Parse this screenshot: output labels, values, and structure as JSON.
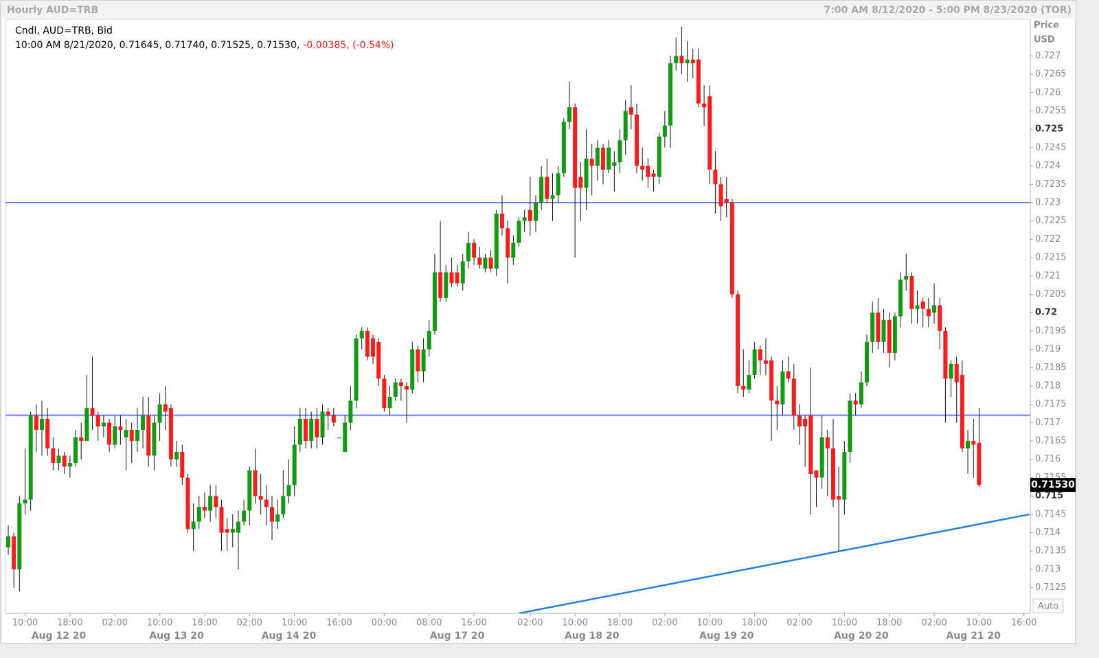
{
  "chart_data": {
    "type": "candlestick",
    "title": "Hourly AUD=TRB",
    "date_range": "7:00 AM 8/12/2020 - 5:00 PM 8/23/2020 (TOR)",
    "legend_title": "Cndl, AUD=TRB, Bid",
    "legend_values": "10:00 AM 8/21/2020, 0.71645, 0.71740, 0.71525, 0.71530,",
    "legend_change": "-0.00385, (-0.54%)",
    "y_axis_title": "Price",
    "y_axis_unit": "USD",
    "scale_mode": "Auto",
    "up_color": "#129a12",
    "down_color": "#ff1c1c",
    "change_color": "#e8201e",
    "ylim": [
      0.7118,
      0.728
    ],
    "yticks": [
      0.7125,
      0.713,
      0.7135,
      0.714,
      0.7145,
      0.715,
      0.7155,
      0.716,
      0.7165,
      0.717,
      0.7175,
      0.718,
      0.7185,
      0.719,
      0.7195,
      0.72,
      0.7205,
      0.721,
      0.7215,
      0.722,
      0.7225,
      0.723,
      0.7235,
      0.724,
      0.7245,
      0.725,
      0.7255,
      0.726,
      0.7265,
      0.727
    ],
    "last_price": {
      "value": 0.7153,
      "label": "0.71530"
    },
    "hlines": {
      "color": "#6d7ff0",
      "values": [
        0.723,
        0.7172
      ]
    },
    "trendline": {
      "color": "#1f7fe6",
      "x": [
        91,
        182
      ],
      "y": [
        0.7118,
        0.7145
      ]
    },
    "categories": [
      null,
      null,
      null,
      "10:00",
      null,
      null,
      null,
      null,
      null,
      null,
      null,
      "18:00",
      null,
      null,
      null,
      null,
      null,
      null,
      null,
      "02:00",
      null,
      null,
      null,
      null,
      null,
      null,
      null,
      "10:00",
      null,
      null,
      null,
      null,
      null,
      null,
      null,
      "18:00",
      null,
      null,
      null,
      null,
      null,
      null,
      null,
      "02:00",
      null,
      null,
      null,
      null,
      null,
      null,
      null,
      "10:00",
      null,
      null,
      null,
      null,
      null,
      null,
      null,
      "16:00",
      null,
      null,
      null,
      null,
      null,
      null,
      null,
      "00:00",
      null,
      null,
      null,
      null,
      null,
      null,
      null,
      "08:00",
      null,
      null,
      null,
      null,
      null,
      null,
      null,
      "16:00",
      null,
      null,
      null,
      null,
      null,
      null,
      null,
      null,
      null,
      "02:00",
      null,
      null,
      null,
      null,
      null,
      null,
      null,
      "10:00",
      null,
      null,
      null,
      null,
      null,
      null,
      null,
      "18:00",
      null,
      null,
      null,
      null,
      null,
      null,
      null,
      "02:00",
      null,
      null,
      null,
      null,
      null,
      null,
      null,
      "10:00",
      null,
      null,
      null,
      null,
      null,
      null,
      null,
      "18:00",
      null,
      null,
      null,
      null,
      null,
      null,
      null,
      "02:00",
      null,
      null,
      null,
      null,
      null,
      null,
      null,
      "10:00",
      null,
      null,
      null,
      null,
      null,
      null,
      null,
      "18:00",
      null,
      null,
      null,
      null,
      null,
      null,
      null,
      "02:00",
      null,
      null,
      null,
      null,
      null,
      null,
      null,
      "10:00",
      null,
      null,
      null,
      null,
      null,
      null,
      null,
      "16:00",
      null
    ],
    "date_labels": [
      null,
      null,
      null,
      null,
      null,
      null,
      null,
      null,
      null,
      "Aug 12 20",
      null,
      null,
      null,
      null,
      null,
      null,
      null,
      null,
      null,
      null,
      null,
      null,
      null,
      null,
      null,
      null,
      null,
      null,
      null,
      null,
      "Aug 13 20",
      null,
      null,
      null,
      null,
      null,
      null,
      null,
      null,
      null,
      null,
      null,
      null,
      null,
      null,
      null,
      null,
      null,
      null,
      null,
      "Aug 14 20",
      null,
      null,
      null,
      null,
      null,
      null,
      null,
      null,
      null,
      null,
      null,
      null,
      null,
      null,
      null,
      null,
      null,
      null,
      null,
      null,
      null,
      null,
      null,
      null,
      null,
      null,
      null,
      null,
      null,
      "Aug 17 20",
      null,
      null,
      null,
      null,
      null,
      null,
      null,
      null,
      null,
      null,
      null,
      null,
      null,
      null,
      null,
      null,
      null,
      null,
      null,
      null,
      null,
      null,
      null,
      "Aug 18 20",
      null,
      null,
      null,
      null,
      null,
      null,
      null,
      null,
      null,
      null,
      null,
      null,
      null,
      null,
      null,
      null,
      null,
      null,
      null,
      null,
      null,
      null,
      null,
      "Aug 19 20",
      null,
      null,
      null,
      null,
      null,
      null,
      null,
      null,
      null,
      null,
      null,
      null,
      null,
      null,
      null,
      null,
      null,
      null,
      null,
      null,
      null,
      null,
      null,
      "Aug 20 20",
      null,
      null,
      null,
      null,
      null,
      null,
      null,
      null,
      null,
      null,
      null,
      null,
      null,
      null,
      null,
      null,
      null,
      null,
      null,
      "Aug 21 20",
      null,
      null,
      null,
      null,
      null,
      null,
      null,
      null,
      null,
      null
    ],
    "open": [
      0.7136,
      0.7139,
      0.713,
      0.7148,
      0.7149,
      0.7172,
      0.7168,
      0.7171,
      0.7163,
      0.7159,
      0.7161,
      0.7158,
      0.7159,
      0.7166,
      0.7165,
      0.7174,
      0.7172,
      0.7169,
      0.717,
      0.7164,
      0.7169,
      0.7166,
      0.7168,
      0.7165,
      0.7168,
      0.7172,
      0.7161,
      0.717,
      0.7175,
      0.7174,
      0.716,
      0.7162,
      0.7155,
      0.7141,
      0.7143,
      0.7147,
      0.7146,
      0.715,
      0.7147,
      0.7141,
      0.714,
      0.714,
      0.7143,
      0.7146,
      0.7157,
      0.715,
      0.7149,
      0.7147,
      0.7143,
      0.7145,
      0.715,
      0.7153,
      0.7164,
      0.7171,
      0.7165,
      0.7171,
      0.7166,
      0.7173,
      0.7172,
      0.7166,
      0.7162,
      0.717,
      0.7176,
      0.7193,
      0.7195,
      0.7193,
      0.7192,
      0.7182,
      0.7174,
      0.7177,
      0.7181,
      0.718,
      0.7179,
      0.719,
      0.7184,
      0.719,
      0.7195,
      0.7211,
      0.7204,
      0.7211,
      0.7211,
      0.7208,
      0.7214,
      0.7219,
      0.7215,
      0.7212,
      0.7215,
      0.7212,
      0.7227,
      0.7223,
      0.7215,
      0.7219,
      0.7225,
      0.7228,
      0.7225,
      0.723,
      0.7237,
      0.7231,
      0.7232,
      0.7238,
      0.7252,
      0.7256,
      0.7237,
      0.7234,
      0.7242,
      0.724,
      0.7245,
      0.7239,
      0.724,
      0.7241,
      0.7247,
      0.7256,
      0.7254,
      0.724,
      0.724,
      0.7238,
      0.7237,
      0.7248,
      0.7251,
      0.7268,
      0.727,
      0.7268,
      0.7269,
      0.7269,
      0.7257,
      0.7259,
      0.7239,
      0.7235,
      0.7231,
      0.723,
      0.7205,
      0.718,
      0.7179,
      0.7183,
      0.719,
      0.7187,
      0.7187,
      0.7176,
      0.7175,
      0.7184,
      0.7182,
      0.7172,
      0.7171,
      0.7172,
      0.7157,
      0.7155,
      0.7166,
      0.7163,
      0.715,
      0.7149,
      0.7162,
      0.7176,
      0.7175,
      0.7181,
      0.7192,
      0.72,
      0.7192,
      0.7198,
      0.7189,
      0.7199,
      0.7209,
      0.721,
      0.7201,
      0.7203,
      0.7201,
      0.72,
      0.7202,
      0.7195,
      0.7182,
      0.7186,
      0.7183,
      0.7163,
      0.7165,
      0.71645,
      null,
      null,
      null,
      null,
      null,
      null,
      null,
      null,
      null
    ],
    "high": [
      0.7142,
      0.714,
      0.715,
      0.7163,
      0.7173,
      0.7175,
      0.7176,
      0.7174,
      0.7166,
      0.7163,
      0.7162,
      0.7161,
      0.7168,
      0.717,
      0.7183,
      0.7188,
      0.7173,
      0.7172,
      0.7171,
      0.7172,
      0.7172,
      0.7171,
      0.717,
      0.7174,
      0.7177,
      0.7177,
      0.7172,
      0.7178,
      0.718,
      0.7175,
      0.7165,
      0.7164,
      0.7156,
      0.7148,
      0.715,
      0.7151,
      0.7153,
      0.7153,
      0.7149,
      0.7144,
      0.7145,
      0.7146,
      0.7149,
      0.7158,
      0.7163,
      0.7156,
      0.7153,
      0.715,
      0.7149,
      0.7157,
      0.716,
      0.7169,
      0.7174,
      0.7174,
      0.7173,
      0.7174,
      0.7175,
      0.7174,
      0.7174,
      0.7166,
      0.7172,
      0.718,
      0.7194,
      0.7196,
      0.7196,
      0.7194,
      0.7193,
      0.7183,
      0.718,
      0.7182,
      0.7182,
      0.7181,
      0.7192,
      0.7191,
      0.7193,
      0.7198,
      0.7216,
      0.7225,
      0.7213,
      0.7215,
      0.7213,
      0.7216,
      0.7222,
      0.722,
      0.7218,
      0.7216,
      0.7217,
      0.7228,
      0.7232,
      0.7225,
      0.7221,
      0.7226,
      0.7228,
      0.7237,
      0.7232,
      0.724,
      0.7242,
      0.7238,
      0.724,
      0.7253,
      0.7263,
      0.7257,
      0.7241,
      0.725,
      0.7246,
      0.7247,
      0.7246,
      0.7247,
      0.7244,
      0.725,
      0.7258,
      0.7262,
      0.7257,
      0.7245,
      0.7242,
      0.7239,
      0.7249,
      0.7255,
      0.727,
      0.7275,
      0.7278,
      0.7274,
      0.7272,
      0.7272,
      0.7262,
      0.7262,
      0.7244,
      0.7237,
      0.7237,
      0.7231,
      0.7206,
      0.719,
      0.7187,
      0.7192,
      0.7191,
      0.7193,
      0.7188,
      0.718,
      0.7187,
      0.7188,
      0.7186,
      0.7175,
      0.7172,
      0.7185,
      0.7157,
      0.7172,
      0.7168,
      0.7171,
      0.7158,
      0.7165,
      0.7178,
      0.7178,
      0.7184,
      0.7194,
      0.7203,
      0.7204,
      0.7201,
      0.72,
      0.72,
      0.7211,
      0.7216,
      0.7211,
      0.7206,
      0.7204,
      0.7204,
      0.7208,
      0.7204,
      0.7196,
      0.7187,
      0.7188,
      0.7187,
      0.7168,
      0.7171,
      0.7174,
      null,
      null,
      null,
      null,
      null,
      null,
      null,
      null,
      null
    ],
    "low": [
      0.7134,
      0.7125,
      0.7124,
      0.7145,
      0.7146,
      0.7162,
      0.7161,
      0.7161,
      0.7157,
      0.7157,
      0.7156,
      0.7155,
      0.7158,
      0.716,
      0.7165,
      0.7168,
      0.7165,
      0.7166,
      0.7162,
      0.7163,
      0.7164,
      0.7157,
      0.7159,
      0.7162,
      0.7163,
      0.7158,
      0.7157,
      0.7165,
      0.7168,
      0.7158,
      0.7158,
      0.7153,
      0.714,
      0.7135,
      0.7141,
      0.7144,
      0.7143,
      0.7144,
      0.7135,
      0.7135,
      0.7136,
      0.713,
      0.7142,
      0.7142,
      0.7148,
      0.7145,
      0.7142,
      0.7138,
      0.7141,
      0.7144,
      0.7148,
      0.715,
      0.7162,
      0.7163,
      0.7163,
      0.7163,
      0.7164,
      0.7168,
      0.7169,
      0.7166,
      0.7162,
      0.7168,
      0.7174,
      0.719,
      0.7187,
      0.7186,
      0.718,
      0.7173,
      0.7172,
      0.7176,
      0.7176,
      0.717,
      0.7178,
      0.7181,
      0.7181,
      0.7188,
      0.7194,
      0.7203,
      0.7203,
      0.7207,
      0.7207,
      0.7206,
      0.7212,
      0.7213,
      0.7212,
      0.7211,
      0.7211,
      0.721,
      0.7221,
      0.7208,
      0.7213,
      0.7218,
      0.7222,
      0.7221,
      0.7222,
      0.7228,
      0.723,
      0.7225,
      0.723,
      0.7237,
      0.725,
      0.7215,
      0.7225,
      0.7228,
      0.7232,
      0.7236,
      0.7235,
      0.7238,
      0.7233,
      0.7238,
      0.7243,
      0.725,
      0.7238,
      0.7236,
      0.7234,
      0.7233,
      0.7235,
      0.7245,
      0.7245,
      0.7266,
      0.7265,
      0.7263,
      0.7264,
      0.7256,
      0.7251,
      0.7235,
      0.7227,
      0.7225,
      0.7226,
      0.7204,
      0.7178,
      0.7177,
      0.7178,
      0.7182,
      0.7183,
      0.7183,
      0.7165,
      0.7168,
      0.7172,
      0.7181,
      0.7168,
      0.7164,
      0.7158,
      0.7145,
      0.7147,
      0.7152,
      0.715,
      0.7147,
      0.7135,
      0.7145,
      0.7159,
      0.7172,
      0.7174,
      0.718,
      0.7189,
      0.719,
      0.7189,
      0.7185,
      0.7187,
      0.7196,
      0.7206,
      0.7197,
      0.7197,
      0.7196,
      0.7196,
      0.7197,
      0.719,
      0.717,
      0.7177,
      0.717,
      0.7162,
      0.7156,
      0.7155,
      0.71525,
      null,
      null,
      null,
      null,
      null,
      null,
      null,
      null,
      null
    ],
    "close": [
      0.7139,
      0.713,
      0.7148,
      0.7149,
      0.7172,
      0.7168,
      0.7171,
      0.7163,
      0.7159,
      0.7161,
      0.7158,
      0.7159,
      0.7166,
      0.7165,
      0.7174,
      0.7172,
      0.7169,
      0.717,
      0.7164,
      0.7169,
      0.7168,
      0.7168,
      0.7165,
      0.7168,
      0.7172,
      0.7161,
      0.717,
      0.7175,
      0.7173,
      0.716,
      0.7162,
      0.7155,
      0.7141,
      0.7143,
      0.7147,
      0.7146,
      0.715,
      0.7147,
      0.714,
      0.714,
      0.7141,
      0.7143,
      0.7146,
      0.7157,
      0.715,
      0.7149,
      0.7147,
      0.7143,
      0.7145,
      0.715,
      0.7153,
      0.7164,
      0.7171,
      0.7165,
      0.7171,
      0.7166,
      0.7173,
      0.7172,
      0.717,
      0.7166,
      0.717,
      0.7176,
      0.7193,
      0.7195,
      0.7188,
      0.7188,
      0.7182,
      0.7174,
      0.7177,
      0.7181,
      0.718,
      0.7179,
      0.719,
      0.7184,
      0.719,
      0.7195,
      0.7211,
      0.7204,
      0.7211,
      0.7208,
      0.7208,
      0.7214,
      0.7219,
      0.7215,
      0.7213,
      0.7215,
      0.7212,
      0.7227,
      0.7223,
      0.7215,
      0.7219,
      0.7225,
      0.7226,
      0.7225,
      0.723,
      0.7237,
      0.7231,
      0.7232,
      0.7238,
      0.7252,
      0.7256,
      0.7234,
      0.7234,
      0.7242,
      0.724,
      0.7245,
      0.7239,
      0.7245,
      0.7241,
      0.7247,
      0.7255,
      0.7254,
      0.724,
      0.7239,
      0.7237,
      0.7237,
      0.7248,
      0.7251,
      0.7268,
      0.727,
      0.7268,
      0.7269,
      0.7268,
      0.7257,
      0.7256,
      0.7239,
      0.7235,
      0.7229,
      0.723,
      0.7205,
      0.718,
      0.7179,
      0.7183,
      0.719,
      0.7187,
      0.7186,
      0.7176,
      0.7175,
      0.7184,
      0.7182,
      0.7172,
      0.7169,
      0.7169,
      0.7156,
      0.7155,
      0.7166,
      0.7163,
      0.7149,
      0.7149,
      0.7162,
      0.7176,
      0.7175,
      0.7181,
      0.7192,
      0.72,
      0.7192,
      0.7198,
      0.7189,
      0.7199,
      0.7209,
      0.721,
      0.7201,
      0.7202,
      0.7201,
      0.7199,
      0.7202,
      0.7195,
      0.7182,
      0.7186,
      0.7181,
      0.7163,
      0.7165,
      0.7164,
      0.7153,
      null,
      null,
      null,
      null,
      null,
      null,
      null,
      null,
      null
    ]
  }
}
